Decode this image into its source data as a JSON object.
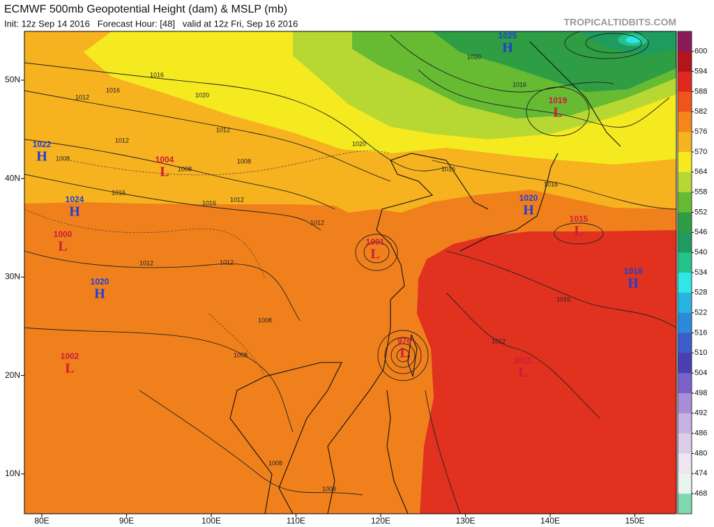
{
  "header": {
    "title": "ECMWF 500mb Geopotential Height (dam) & MSLP (mb)",
    "subtitle": "Init: 12z Sep 14 2016   Forecast Hour: [48]   valid at 12z Fri, Sep 16 2016",
    "watermark": "TROPICALTIDBITS.COM"
  },
  "map": {
    "lon_ticks": [
      {
        "value": 80,
        "label": "80E"
      },
      {
        "value": 90,
        "label": "90E"
      },
      {
        "value": 100,
        "label": "100E"
      },
      {
        "value": 110,
        "label": "110E"
      },
      {
        "value": 120,
        "label": "120E"
      },
      {
        "value": 130,
        "label": "130E"
      },
      {
        "value": 140,
        "label": "140E"
      },
      {
        "value": 150,
        "label": "150E"
      }
    ],
    "lat_ticks": [
      {
        "value": 50,
        "label": "50N"
      },
      {
        "value": 40,
        "label": "40N"
      },
      {
        "value": 30,
        "label": "30N"
      },
      {
        "value": 20,
        "label": "20N"
      },
      {
        "value": 10,
        "label": "10N"
      }
    ],
    "center_colors": {
      "H": "#1f3fd0",
      "L": "#d01a3a"
    },
    "pressure_centers": [
      {
        "kind": "H",
        "value": 1025
      },
      {
        "kind": "L",
        "value": 1019
      },
      {
        "kind": "H",
        "value": 1022
      },
      {
        "kind": "L",
        "value": 1004
      },
      {
        "kind": "H",
        "value": 1024
      },
      {
        "kind": "L",
        "value": 1000
      },
      {
        "kind": "H",
        "value": 1020
      },
      {
        "kind": "L",
        "value": 1001
      },
      {
        "kind": "L",
        "value": 976
      },
      {
        "kind": "L",
        "value": 1002
      },
      {
        "kind": "H",
        "value": 1020
      },
      {
        "kind": "L",
        "value": 1015
      },
      {
        "kind": "H",
        "value": 1018
      },
      {
        "kind": "L",
        "value": 1011
      }
    ],
    "isobar_labels": [
      1016,
      1020,
      1012,
      1016,
      1012,
      1012,
      1008,
      1008,
      1008,
      1016,
      1016,
      1012,
      1012,
      1020,
      1020,
      1016,
      1016,
      1016,
      1016,
      1012,
      1012,
      1008,
      1008,
      1008,
      1008,
      1012
    ]
  },
  "colorbar": {
    "levels": [
      600,
      594,
      588,
      582,
      576,
      570,
      564,
      558,
      552,
      546,
      540,
      534,
      528,
      522,
      516,
      510,
      504,
      498,
      492,
      486,
      480,
      474,
      468
    ],
    "colors": [
      "#8b1a5a",
      "#b3151b",
      "#e0281e",
      "#f0541a",
      "#f5861c",
      "#f6b21f",
      "#f5ea1f",
      "#b7d832",
      "#66bb33",
      "#2e9d44",
      "#1e9b5e",
      "#23c38b",
      "#2ee7e7",
      "#27b5e0",
      "#2a8bd9",
      "#3a5dc9",
      "#4a3fb0",
      "#7a62c9",
      "#a88ed8",
      "#c5b2e3",
      "#dccde9",
      "#eee5f2",
      "#e8f4ee",
      "#7fd9b0"
    ]
  }
}
